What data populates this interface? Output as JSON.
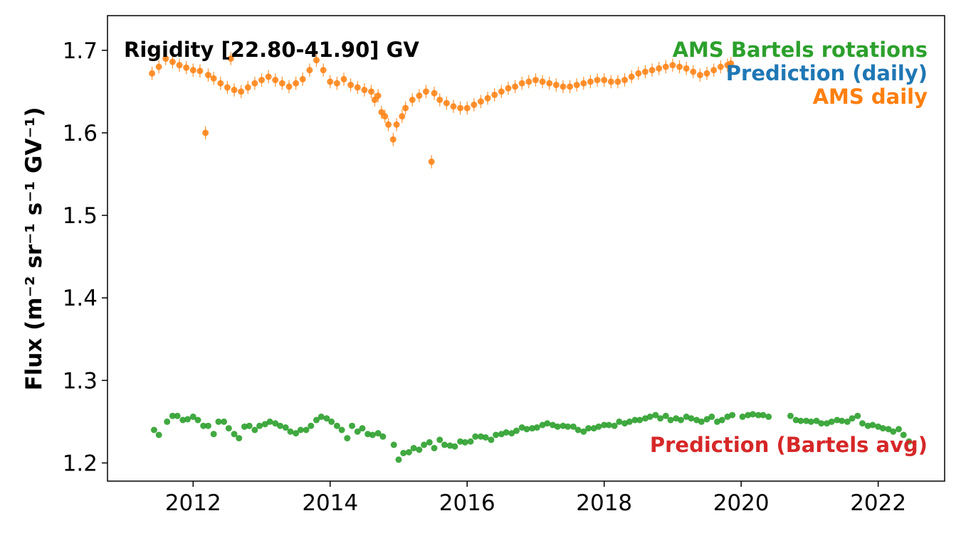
{
  "chart_data": {
    "type": "scatter",
    "title": "",
    "annotation": "Rigidity [22.80-41.90] GV",
    "xlabel": "",
    "ylabel": "Flux (m⁻² sr⁻¹ s⁻¹ GV⁻¹)",
    "xlim": [
      2010.75,
      2022.97
    ],
    "ylim": [
      1.178,
      1.742
    ],
    "xticks": [
      2012,
      2014,
      2016,
      2018,
      2020,
      2022
    ],
    "yticks": [
      1.2,
      1.3,
      1.4,
      1.5,
      1.6,
      1.7
    ],
    "xtick_labels": [
      "2012",
      "2014",
      "2016",
      "2018",
      "2020",
      "2022"
    ],
    "ytick_labels": [
      "1.2",
      "1.3",
      "1.4",
      "1.5",
      "1.6",
      "1.7"
    ],
    "grid": false,
    "legend_position": "top-right",
    "legend": [
      {
        "label": "AMS Bartels rotations",
        "color": "#2ca02c"
      },
      {
        "label": "Prediction (daily)",
        "color": "#1f77b4"
      },
      {
        "label": "AMS daily",
        "color": "#ff7f0e"
      }
    ],
    "legend_lower": {
      "label": "Prediction (Bartels avg)",
      "color": "#d62728"
    },
    "series": [
      {
        "name": "AMS daily",
        "color": "#ff7f0e",
        "style": "points-with-errorbars",
        "error": 0.008,
        "x": [
          2011.4,
          2011.5,
          2011.6,
          2011.7,
          2011.8,
          2011.9,
          2012.0,
          2012.1,
          2012.18,
          2012.22,
          2012.3,
          2012.4,
          2012.5,
          2012.55,
          2012.6,
          2012.7,
          2012.8,
          2012.9,
          2013.0,
          2013.1,
          2013.2,
          2013.3,
          2013.4,
          2013.5,
          2013.6,
          2013.7,
          2013.8,
          2013.9,
          2014.0,
          2014.1,
          2014.2,
          2014.3,
          2014.4,
          2014.5,
          2014.6,
          2014.65,
          2014.7,
          2014.75,
          2014.8,
          2014.85,
          2014.92,
          2014.97,
          2015.05,
          2015.1,
          2015.2,
          2015.3,
          2015.4,
          2015.48,
          2015.52,
          2015.6,
          2015.7,
          2015.8,
          2015.9,
          2016.0,
          2016.1,
          2016.2,
          2016.3,
          2016.4,
          2016.5,
          2016.6,
          2016.7,
          2016.8,
          2016.9,
          2017.0,
          2017.1,
          2017.2,
          2017.3,
          2017.4,
          2017.5,
          2017.6,
          2017.7,
          2017.8,
          2017.9,
          2018.0,
          2018.1,
          2018.2,
          2018.3,
          2018.4,
          2018.5,
          2018.6,
          2018.7,
          2018.8,
          2018.9,
          2019.0,
          2019.1,
          2019.2,
          2019.3,
          2019.4,
          2019.5,
          2019.6,
          2019.7,
          2019.8,
          2019.85
        ],
        "y": [
          1.672,
          1.68,
          1.69,
          1.686,
          1.682,
          1.679,
          1.676,
          1.675,
          1.6,
          1.67,
          1.666,
          1.66,
          1.655,
          1.69,
          1.652,
          1.65,
          1.655,
          1.66,
          1.664,
          1.668,
          1.664,
          1.66,
          1.656,
          1.66,
          1.665,
          1.676,
          1.688,
          1.676,
          1.662,
          1.66,
          1.665,
          1.658,
          1.655,
          1.652,
          1.65,
          1.64,
          1.645,
          1.625,
          1.62,
          1.61,
          1.592,
          1.61,
          1.62,
          1.63,
          1.64,
          1.645,
          1.65,
          1.565,
          1.648,
          1.64,
          1.636,
          1.632,
          1.63,
          1.63,
          1.634,
          1.638,
          1.642,
          1.646,
          1.65,
          1.654,
          1.656,
          1.66,
          1.662,
          1.664,
          1.662,
          1.66,
          1.658,
          1.656,
          1.656,
          1.658,
          1.66,
          1.662,
          1.664,
          1.664,
          1.662,
          1.662,
          1.664,
          1.668,
          1.672,
          1.674,
          1.676,
          1.678,
          1.68,
          1.682,
          1.68,
          1.678,
          1.674,
          1.67,
          1.672,
          1.676,
          1.68,
          1.682,
          1.684
        ]
      },
      {
        "name": "AMS Bartels rotations",
        "color": "#2ca02c",
        "style": "points",
        "x": [
          2011.43,
          2011.5,
          2011.62,
          2011.7,
          2011.77,
          2011.85,
          2011.92,
          2012.0,
          2012.07,
          2012.15,
          2012.22,
          2012.3,
          2012.37,
          2012.45,
          2012.52,
          2012.6,
          2012.67,
          2012.75,
          2012.82,
          2012.9,
          2012.97,
          2013.05,
          2013.12,
          2013.2,
          2013.27,
          2013.35,
          2013.42,
          2013.5,
          2013.57,
          2013.65,
          2013.72,
          2013.8,
          2013.87,
          2013.95,
          2014.02,
          2014.1,
          2014.17,
          2014.25,
          2014.32,
          2014.4,
          2014.47,
          2014.55,
          2014.62,
          2014.7,
          2014.77,
          2014.93,
          2015.0,
          2015.07,
          2015.15,
          2015.22,
          2015.3,
          2015.37,
          2015.45,
          2015.52,
          2015.6,
          2015.67,
          2015.75,
          2015.82,
          2015.9,
          2015.97,
          2016.05,
          2016.12,
          2016.2,
          2016.27,
          2016.35,
          2016.42,
          2016.5,
          2016.57,
          2016.65,
          2016.72,
          2016.8,
          2016.87,
          2016.95,
          2017.02,
          2017.1,
          2017.17,
          2017.25,
          2017.32,
          2017.4,
          2017.47,
          2017.55,
          2017.62,
          2017.7,
          2017.77,
          2017.85,
          2017.92,
          2018.0,
          2018.07,
          2018.15,
          2018.22,
          2018.3,
          2018.37,
          2018.45,
          2018.52,
          2018.6,
          2018.67,
          2018.75,
          2018.82,
          2018.9,
          2018.97,
          2019.05,
          2019.12,
          2019.2,
          2019.27,
          2019.35,
          2019.42,
          2019.5,
          2019.57,
          2019.65,
          2019.72,
          2019.8,
          2019.87,
          2020.02,
          2020.1,
          2020.17,
          2020.25,
          2020.32,
          2020.4,
          2020.72,
          2020.8,
          2020.87,
          2020.95,
          2021.02,
          2021.1,
          2021.17,
          2021.25,
          2021.32,
          2021.4,
          2021.47,
          2021.55,
          2021.62,
          2021.7,
          2021.77,
          2021.85,
          2021.92,
          2022.0,
          2022.07,
          2022.15,
          2022.22,
          2022.3,
          2022.37,
          2022.45
        ],
        "y": [
          1.24,
          1.234,
          1.25,
          1.257,
          1.257,
          1.252,
          1.253,
          1.256,
          1.252,
          1.245,
          1.245,
          1.235,
          1.25,
          1.25,
          1.242,
          1.235,
          1.23,
          1.244,
          1.245,
          1.24,
          1.245,
          1.247,
          1.25,
          1.248,
          1.245,
          1.243,
          1.238,
          1.236,
          1.24,
          1.24,
          1.245,
          1.252,
          1.256,
          1.254,
          1.25,
          1.245,
          1.24,
          1.23,
          1.245,
          1.238,
          1.242,
          1.235,
          1.234,
          1.236,
          1.232,
          1.222,
          1.204,
          1.212,
          1.213,
          1.218,
          1.216,
          1.222,
          1.225,
          1.218,
          1.228,
          1.222,
          1.221,
          1.22,
          1.226,
          1.225,
          1.226,
          1.232,
          1.232,
          1.231,
          1.228,
          1.234,
          1.235,
          1.237,
          1.236,
          1.239,
          1.243,
          1.241,
          1.242,
          1.243,
          1.246,
          1.248,
          1.246,
          1.244,
          1.245,
          1.244,
          1.244,
          1.24,
          1.238,
          1.242,
          1.242,
          1.244,
          1.246,
          1.246,
          1.245,
          1.25,
          1.248,
          1.25,
          1.252,
          1.252,
          1.254,
          1.256,
          1.258,
          1.254,
          1.257,
          1.252,
          1.254,
          1.252,
          1.256,
          1.254,
          1.252,
          1.25,
          1.253,
          1.256,
          1.25,
          1.252,
          1.256,
          1.258,
          1.256,
          1.258,
          1.259,
          1.258,
          1.258,
          1.256,
          1.257,
          1.252,
          1.251,
          1.251,
          1.25,
          1.251,
          1.248,
          1.248,
          1.25,
          1.252,
          1.251,
          1.25,
          1.254,
          1.257,
          1.248,
          1.245,
          1.246,
          1.244,
          1.242,
          1.241,
          1.238,
          1.241,
          1.234,
          1.226
        ]
      }
    ]
  }
}
